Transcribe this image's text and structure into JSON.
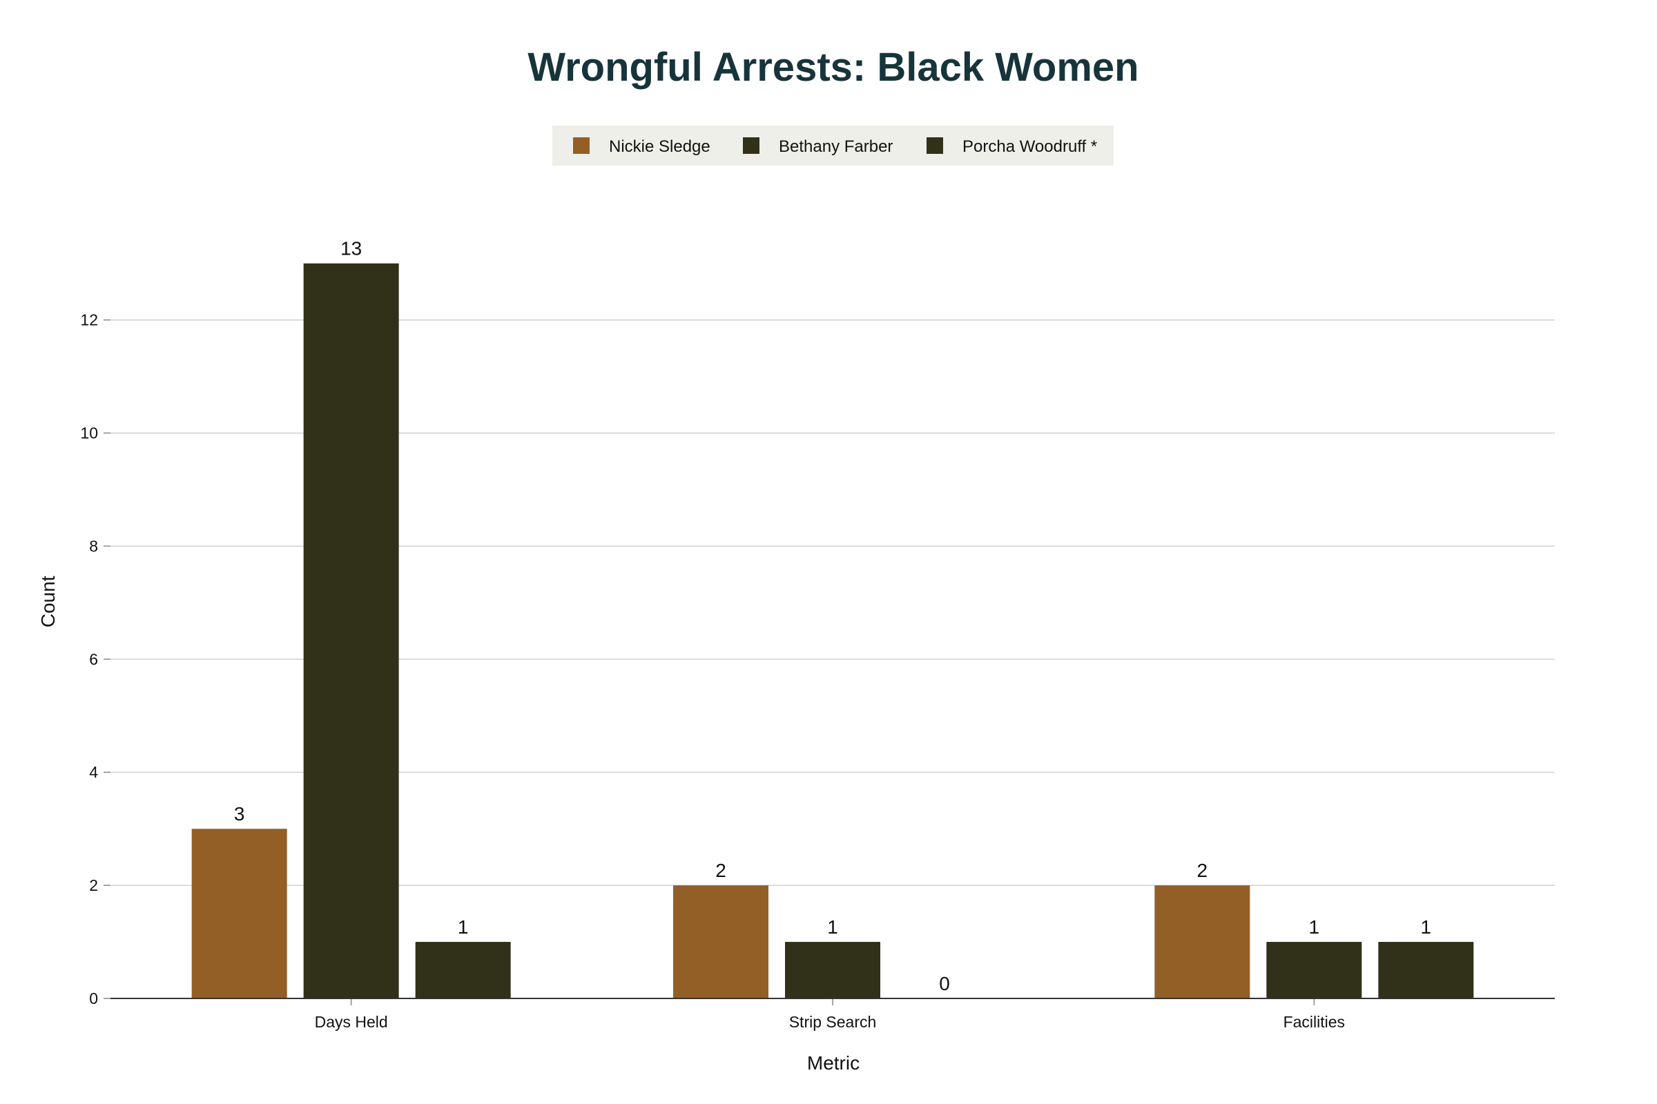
{
  "chart_data": {
    "type": "bar",
    "title": "Wrongful Arrests: Black Women",
    "xlabel": "Metric",
    "ylabel": "Count",
    "categories": [
      "Days Held",
      "Strip Search",
      "Facilities"
    ],
    "series": [
      {
        "name": "Nickie Sledge",
        "color": "#935f27",
        "values": [
          3,
          2,
          2
        ]
      },
      {
        "name": "Bethany Farber",
        "color": "#31311a",
        "values": [
          13,
          1,
          1
        ]
      },
      {
        "name": "Porcha Woodruff *",
        "color": "#31311a",
        "values": [
          1,
          0,
          1
        ]
      }
    ],
    "ylim": [
      0,
      13.9
    ],
    "yticks": [
      0,
      2,
      4,
      6,
      8,
      10,
      12
    ],
    "grid": true,
    "legend_position": "top-center",
    "legend_background": "#efefe9",
    "data_labels": true
  }
}
